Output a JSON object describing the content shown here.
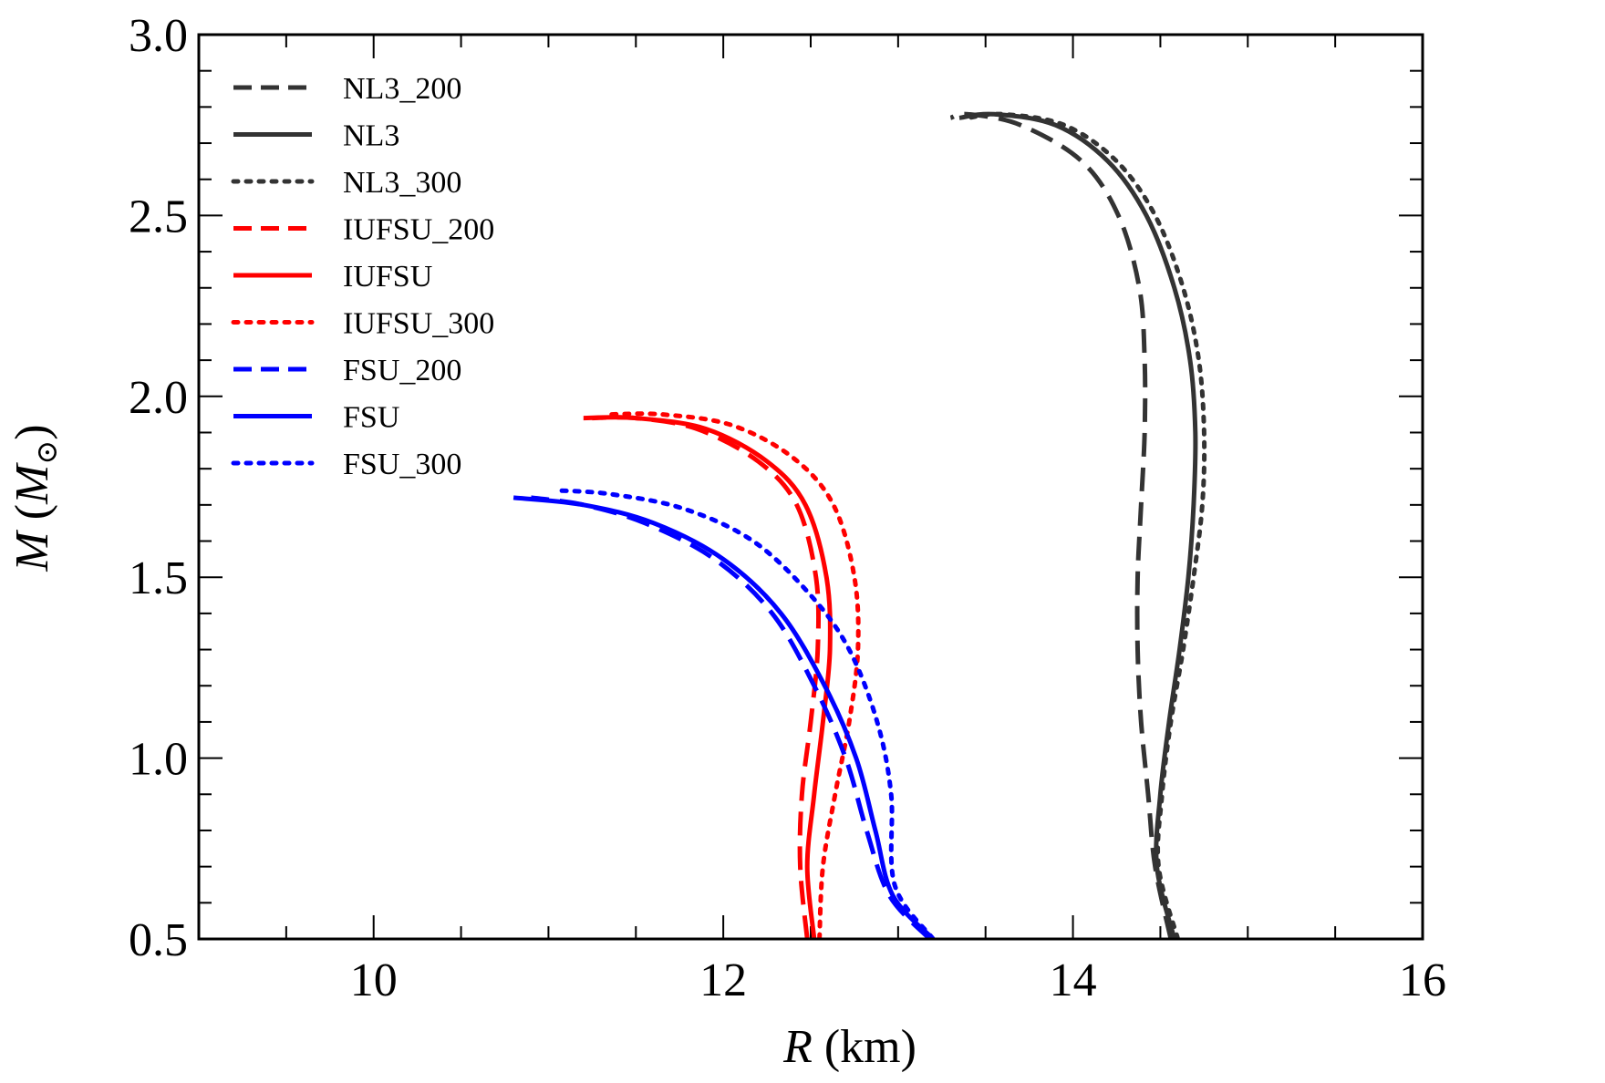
{
  "chart_data": {
    "type": "line",
    "title": "",
    "xlabel_var": "R",
    "xlabel_unit": " (km)",
    "ylabel_var": "M",
    "ylabel_unit_open": " (",
    "ylabel_unit_sym": "M",
    "ylabel_unit_sub": "⊙",
    "ylabel_unit_close": ")",
    "xlim": [
      9,
      16
    ],
    "ylim": [
      0.5,
      3.0
    ],
    "xticks": [
      10,
      12,
      14,
      16
    ],
    "xtick_labels": [
      "10",
      "12",
      "14",
      "16"
    ],
    "yticks": [
      0.5,
      1.0,
      1.5,
      2.0,
      2.5,
      3.0
    ],
    "ytick_labels": [
      "0.5",
      "1.0",
      "1.5",
      "2.0",
      "2.5",
      "3.0"
    ],
    "x_minor_step": 0.5,
    "y_minor_step": 0.1,
    "grid": false,
    "legend_position": "top-left",
    "colors": {
      "black": "#333333",
      "red": "#ff0000",
      "blue": "#0000ff"
    },
    "series": [
      {
        "name": "NL3_200",
        "color": "black",
        "style": "dashed",
        "x": [
          14.56,
          14.47,
          14.43,
          14.39,
          14.37,
          14.37,
          14.39,
          14.41,
          14.41,
          14.38,
          14.26,
          14.05,
          13.7,
          13.4,
          13.3
        ],
        "y": [
          0.5,
          0.7,
          0.9,
          1.1,
          1.3,
          1.5,
          1.7,
          1.9,
          2.1,
          2.3,
          2.5,
          2.65,
          2.75,
          2.78,
          2.77
        ]
      },
      {
        "name": "NL3",
        "color": "black",
        "style": "solid",
        "x": [
          14.58,
          14.48,
          14.5,
          14.55,
          14.61,
          14.66,
          14.69,
          14.7,
          14.67,
          14.58,
          14.42,
          14.2,
          13.9,
          13.55,
          13.35
        ],
        "y": [
          0.5,
          0.7,
          0.9,
          1.1,
          1.3,
          1.5,
          1.7,
          1.9,
          2.1,
          2.3,
          2.5,
          2.65,
          2.75,
          2.78,
          2.77
        ]
      },
      {
        "name": "NL3_300",
        "color": "black",
        "style": "dotted",
        "x": [
          14.6,
          14.49,
          14.51,
          14.56,
          14.63,
          14.69,
          14.74,
          14.75,
          14.72,
          14.63,
          14.47,
          14.25,
          13.95,
          13.6,
          13.4
        ],
        "y": [
          0.5,
          0.7,
          0.9,
          1.1,
          1.3,
          1.5,
          1.7,
          1.9,
          2.1,
          2.3,
          2.5,
          2.65,
          2.75,
          2.78,
          2.77
        ]
      },
      {
        "name": "IUFSU_200",
        "color": "red",
        "style": "dashed",
        "x": [
          12.48,
          12.44,
          12.45,
          12.5,
          12.54,
          12.53,
          12.42,
          12.2,
          11.85,
          11.5,
          11.25
        ],
        "y": [
          0.5,
          0.7,
          0.9,
          1.1,
          1.3,
          1.5,
          1.7,
          1.82,
          1.91,
          1.94,
          1.94
        ]
      },
      {
        "name": "IUFSU",
        "color": "red",
        "style": "solid",
        "x": [
          12.52,
          12.48,
          12.52,
          12.57,
          12.61,
          12.59,
          12.47,
          12.25,
          11.9,
          11.5,
          11.2
        ],
        "y": [
          0.5,
          0.7,
          0.9,
          1.1,
          1.3,
          1.5,
          1.7,
          1.82,
          1.91,
          1.94,
          1.94
        ]
      },
      {
        "name": "IUFSU_300",
        "color": "red",
        "style": "dotted",
        "x": [
          12.55,
          12.57,
          12.64,
          12.72,
          12.77,
          12.75,
          12.63,
          12.4,
          12.05,
          11.65,
          11.35
        ],
        "y": [
          0.5,
          0.7,
          0.9,
          1.1,
          1.3,
          1.5,
          1.7,
          1.83,
          1.92,
          1.95,
          1.95
        ]
      },
      {
        "name": "FSU_200",
        "color": "blue",
        "style": "dashed",
        "x": [
          13.18,
          12.95,
          12.82,
          12.7,
          12.52,
          12.28,
          11.95,
          11.55,
          11.2,
          10.9
        ],
        "y": [
          0.5,
          0.62,
          0.8,
          1.0,
          1.2,
          1.4,
          1.55,
          1.65,
          1.7,
          1.72
        ]
      },
      {
        "name": "FSU",
        "color": "blue",
        "style": "solid",
        "x": [
          13.2,
          12.97,
          12.87,
          12.76,
          12.58,
          12.33,
          12.0,
          11.6,
          11.2,
          10.8
        ],
        "y": [
          0.5,
          0.62,
          0.8,
          1.0,
          1.2,
          1.4,
          1.55,
          1.65,
          1.7,
          1.72
        ]
      },
      {
        "name": "FSU_300",
        "color": "blue",
        "style": "dotted",
        "x": [
          13.2,
          12.98,
          12.96,
          12.88,
          12.72,
          12.5,
          12.17,
          11.77,
          11.35,
          11.05
        ],
        "y": [
          0.5,
          0.65,
          0.9,
          1.1,
          1.3,
          1.45,
          1.6,
          1.69,
          1.73,
          1.74
        ]
      }
    ]
  }
}
